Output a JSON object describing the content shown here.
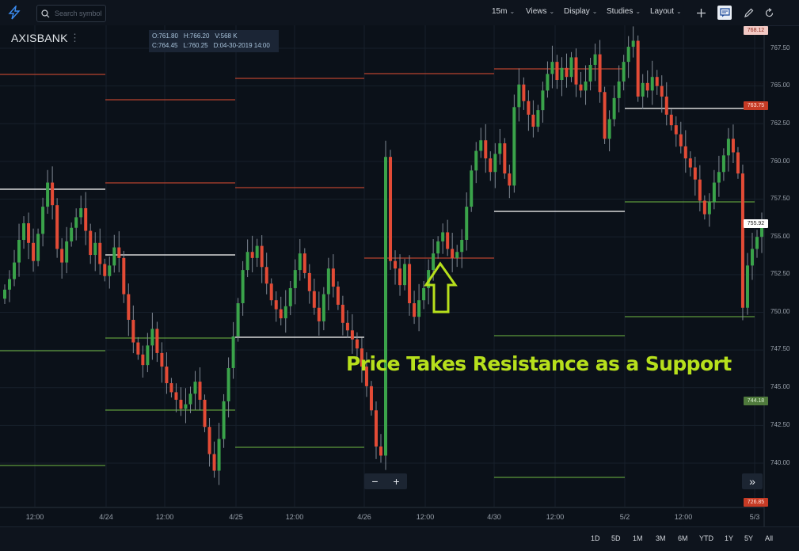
{
  "toolbar": {
    "search_placeholder": "Search symbol",
    "interval": "15m",
    "views": "Views",
    "display": "Display",
    "studies": "Studies",
    "layout": "Layout"
  },
  "symbol": "AXISBANK",
  "ohlc": {
    "open": "O:761.80",
    "high": "H:766.20",
    "volume": "V:568 K",
    "close": "C:764.45",
    "low": "L:760.25",
    "date": "D:04-30-2019 14:00"
  },
  "price_tags": {
    "top": "768.12",
    "red": "763.75",
    "white": "755.92",
    "green": "744.18",
    "bottom": "726.85"
  },
  "y_axis": [
    "767.50",
    "765.00",
    "762.50",
    "760.00",
    "757.50",
    "755.00",
    "752.50",
    "750.00",
    "747.50",
    "745.00",
    "742.50",
    "740.00"
  ],
  "x_axis": [
    "12:00",
    "4/24",
    "12:00",
    "4/25",
    "12:00",
    "4/26",
    "12:00",
    "4/30",
    "12:00",
    "5/2",
    "12:00",
    "5/3"
  ],
  "annotation": "Price Takes Resistance as a Support",
  "zoom": {
    "minus": "−",
    "plus": "+"
  },
  "fast_forward": "»",
  "ranges": [
    "1D",
    "5D",
    "1M",
    "3M",
    "6M",
    "YTD",
    "1Y",
    "5Y",
    "All"
  ],
  "colors": {
    "up": "#3aa34a",
    "down": "#e34b36",
    "annotation": "#b7e01c",
    "background": "#0b1119"
  }
}
